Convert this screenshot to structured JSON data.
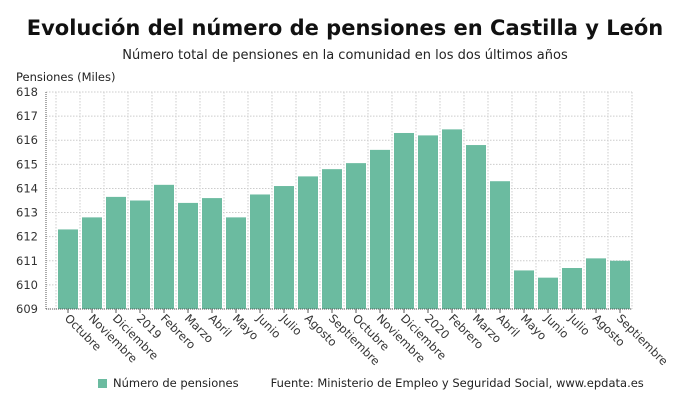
{
  "chart_data": {
    "type": "bar",
    "title": "Evolución del número de pensiones en Castilla y León",
    "subtitle": "Número total de pensiones en la comunidad en los dos últimos años",
    "ylabel": "Pensiones (Miles)",
    "xlabel": "",
    "ylim": [
      609,
      618
    ],
    "yticks": [
      609,
      610,
      611,
      612,
      613,
      614,
      615,
      616,
      617,
      618
    ],
    "grid": true,
    "categories": [
      "Octubre",
      "Noviembre",
      "Diciembre",
      "2019",
      "Febrero",
      "Marzo",
      "Abril",
      "Mayo",
      "Junio",
      "Julio",
      "Agosto",
      "Septiembre",
      "Octubre",
      "Noviembre",
      "Diciembre",
      "2020",
      "Febrero",
      "Marzo",
      "Abril",
      "Mayo",
      "Junio",
      "Julio",
      "Agosto",
      "Septiembre"
    ],
    "series": [
      {
        "name": "Número de pensiones",
        "color": "#6bbba0",
        "values": [
          612.3,
          612.8,
          613.65,
          613.5,
          614.15,
          613.4,
          613.6,
          612.8,
          613.75,
          614.1,
          614.5,
          614.8,
          615.05,
          615.6,
          616.3,
          616.2,
          616.45,
          615.8,
          614.3,
          610.6,
          610.3,
          610.7,
          611.1,
          611.0
        ]
      }
    ],
    "legend": "bottom-left",
    "source": "Fuente: Ministerio de Empleo y Seguridad Social, www.epdata.es"
  }
}
